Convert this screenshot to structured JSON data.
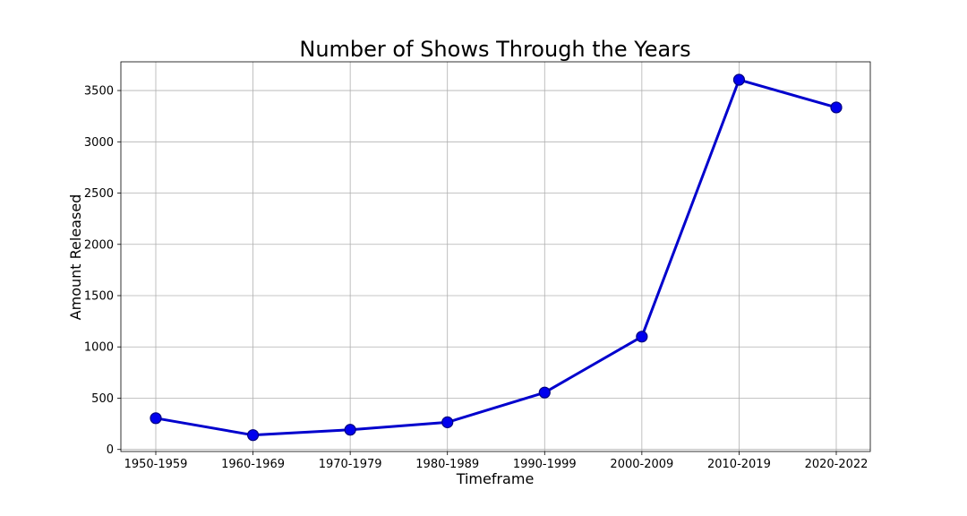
{
  "chart_data": {
    "type": "line",
    "title": "Number of Shows Through the Years",
    "xlabel": "Timeframe",
    "ylabel": "Amount Released",
    "categories": [
      "1950-1959",
      "1960-1969",
      "1970-1979",
      "1980-1989",
      "1990-1999",
      "2000-2009",
      "2010-2019",
      "2020-2022"
    ],
    "series": [
      {
        "values": [
          305,
          140,
          192,
          265,
          555,
          1100,
          3605,
          3335
        ],
        "color": "#0000cd",
        "marker_color": "#0000ee",
        "marker_edge_color": "#000080"
      }
    ],
    "ylim": [
      -20,
      3780
    ],
    "yticks": [
      0,
      500,
      1000,
      1500,
      2000,
      2500,
      3000,
      3500
    ],
    "grid": true
  }
}
